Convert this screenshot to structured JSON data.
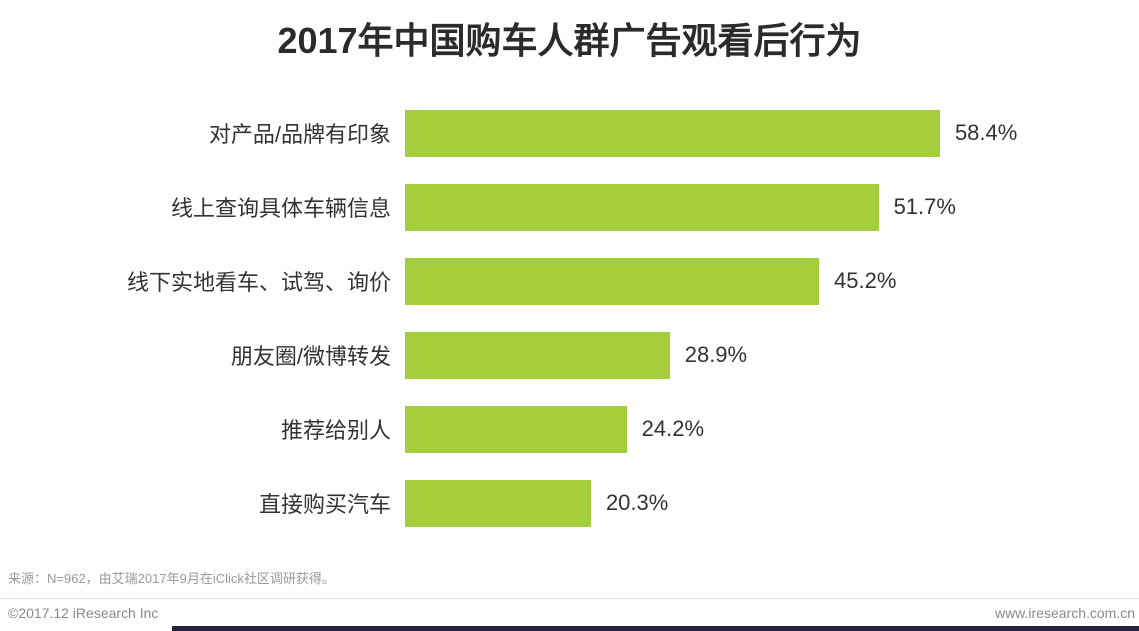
{
  "title": "2017年中国购车人群广告观看后行为",
  "chart_data": {
    "type": "bar",
    "orientation": "horizontal",
    "title": "2017年中国购车人群广告观看后行为",
    "categories": [
      "对产品/品牌有印象",
      "线上查询具体车辆信息",
      "线下实地看车、试驾、询价",
      "朋友圈/微博转发",
      "推荐给别人",
      "直接购买汽车"
    ],
    "values": [
      58.4,
      51.7,
      45.2,
      28.9,
      24.2,
      20.3
    ],
    "value_labels": [
      "58.4%",
      "51.7%",
      "45.2%",
      "28.9%",
      "24.2%",
      "20.3%"
    ],
    "bar_color": "#a5ce3b",
    "xlim": [
      0,
      63
    ],
    "grid": false,
    "legend": false
  },
  "source_note": "来源：N=962，由艾瑞2017年9月在iClick社区调研获得。",
  "footer": {
    "copyright": "©2017.12 iResearch Inc",
    "website": "www.iresearch.com.cn"
  }
}
